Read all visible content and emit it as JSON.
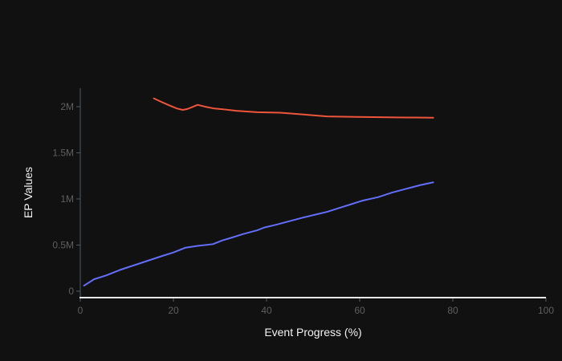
{
  "chart_data": {
    "type": "line",
    "title": "",
    "xlabel": "Event Progress (%)",
    "ylabel": "EP Values",
    "xlim": [
      0,
      100
    ],
    "ylim": [
      -70000,
      2200000
    ],
    "x_ticks": [
      0,
      20,
      40,
      60,
      80,
      100
    ],
    "x_tick_labels": [
      "0",
      "20",
      "40",
      "60",
      "80",
      "100"
    ],
    "y_ticks": [
      0,
      500000,
      1000000,
      1500000,
      2000000
    ],
    "y_tick_labels": [
      "0",
      "0.5M",
      "1M",
      "1.5M",
      "2M"
    ],
    "grid": false,
    "legend": "none",
    "background_color": "#111111",
    "series": [
      {
        "color": "#ef553b",
        "x": [
          15.8,
          17.5,
          19.3,
          20.8,
          22.0,
          23.0,
          24.0,
          25.2,
          26.8,
          28.8,
          31.0,
          33.5,
          38.0,
          43.0,
          48.0,
          53.0,
          58.0,
          63.0,
          68.0,
          72.0,
          75.8
        ],
        "y": [
          2090000,
          2050000,
          2010000,
          1980000,
          1965000,
          1975000,
          1995000,
          2020000,
          2000000,
          1980000,
          1970000,
          1955000,
          1940000,
          1935000,
          1915000,
          1895000,
          1890000,
          1887000,
          1884000,
          1882000,
          1880000
        ]
      },
      {
        "color": "#636efa",
        "x": [
          0.8,
          3.0,
          5.5,
          8.5,
          11.5,
          14.5,
          17.5,
          20.0,
          22.5,
          25.0,
          28.5,
          30.5,
          32.5,
          35.0,
          38.0,
          39.5,
          42.0,
          45.0,
          48.0,
          50.5,
          53.0,
          55.5,
          58.0,
          60.5,
          64.0,
          67.0,
          70.0,
          73.0,
          75.8
        ],
        "y": [
          60000,
          130000,
          170000,
          230000,
          280000,
          330000,
          380000,
          420000,
          470000,
          490000,
          510000,
          550000,
          580000,
          620000,
          660000,
          690000,
          720000,
          760000,
          800000,
          830000,
          860000,
          900000,
          940000,
          980000,
          1020000,
          1070000,
          1110000,
          1150000,
          1180000
        ]
      }
    ]
  }
}
